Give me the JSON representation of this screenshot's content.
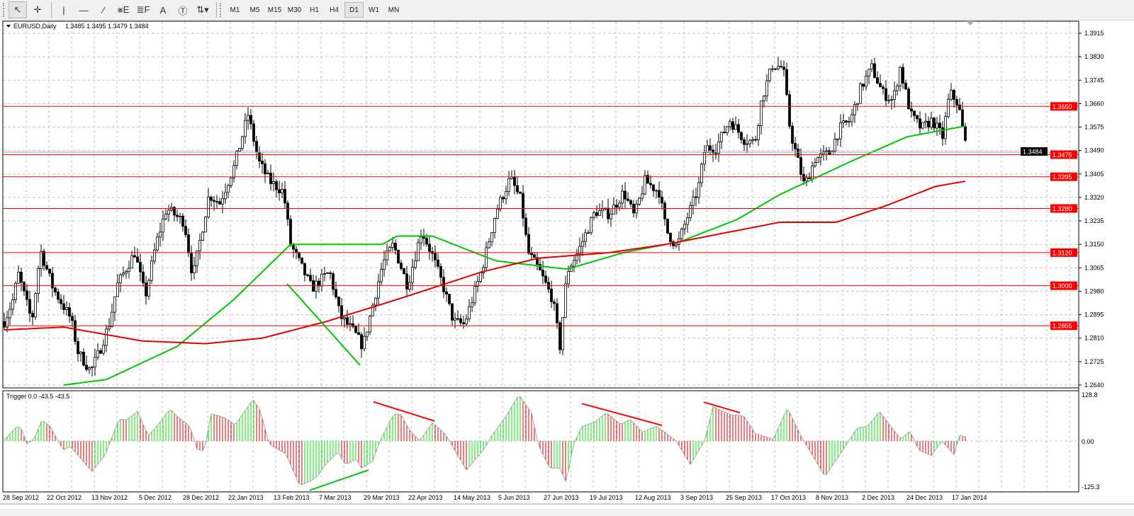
{
  "toolbar": {
    "tools": [
      {
        "name": "cursor-arrow",
        "glyph": "↖",
        "selected": true
      },
      {
        "name": "crosshair",
        "glyph": "✛",
        "selected": false
      },
      {
        "name": "vertical-line",
        "glyph": "|",
        "selected": false
      },
      {
        "name": "horizontal-line",
        "glyph": "—",
        "selected": false
      },
      {
        "name": "trendline",
        "glyph": "∕",
        "selected": false
      },
      {
        "name": "equidistant-channel",
        "glyph": "⨳E",
        "selected": false
      },
      {
        "name": "fibonacci",
        "glyph": "≣F",
        "selected": false
      },
      {
        "name": "text",
        "glyph": "A",
        "selected": false
      },
      {
        "name": "text-label",
        "glyph": "Ⓣ",
        "selected": false
      },
      {
        "name": "arrows-dropdown",
        "glyph": "⇅▾",
        "selected": false
      }
    ],
    "timeframes": [
      "M1",
      "M5",
      "M15",
      "M30",
      "H1",
      "H4",
      "D1",
      "W1",
      "MN"
    ],
    "selected_timeframe": "D1"
  },
  "chart_data": {
    "type": "candlestick",
    "title": "EURUSD,Daily",
    "ohlc_readout": "1.3485 1.3495 1.3479 1.3484",
    "current_price": 1.3484,
    "current_price_label": "1.3484",
    "ylim": [
      1.264,
      1.3915
    ],
    "y_ticks": [
      "1.3915",
      "1.3830",
      "1.3745",
      "1.3660",
      "1.3575",
      "1.3490",
      "1.3405",
      "1.3320",
      "1.3235",
      "1.3150",
      "1.3065",
      "1.2980",
      "1.2895",
      "1.2810",
      "1.2725",
      "1.2640"
    ],
    "x_tick_labels": [
      "28 Sep 2012",
      "22 Oct 2012",
      "13 Nov 2012",
      "5 Dec 2012",
      "28 Dec 2012",
      "22 Jan 2013",
      "13 Feb 2013",
      "7 Mar 2013",
      "29 Mar 2013",
      "22 Apr 2013",
      "14 May 2013",
      "5 Jun 2013",
      "27 Jun 2013",
      "19 Jul 2013",
      "12 Aug 2013",
      "3 Sep 2013",
      "25 Sep 2013",
      "17 Oct 2013",
      "8 Nov 2013",
      "2 Dec 2013",
      "24 Dec 2013",
      "17 Jan 2014"
    ],
    "grid": true,
    "price_path": [
      1.287,
      1.296,
      1.305,
      1.287,
      1.313,
      1.299,
      1.288,
      1.276,
      1.269,
      1.276,
      1.287,
      1.3,
      1.312,
      1.296,
      1.315,
      1.328,
      1.323,
      1.303,
      1.333,
      1.33,
      1.343,
      1.362,
      1.345,
      1.338,
      1.334,
      1.315,
      1.307,
      1.299,
      1.305,
      1.289,
      1.283,
      1.278,
      1.292,
      1.308,
      1.315,
      1.3,
      1.32,
      1.311,
      1.3,
      1.287,
      1.286,
      1.306,
      1.327,
      1.339,
      1.331,
      1.312,
      1.306,
      1.295,
      1.278,
      1.305,
      1.312,
      1.327,
      1.326,
      1.334,
      1.325,
      1.338,
      1.334,
      1.32,
      1.314,
      1.325,
      1.335,
      1.35,
      1.35,
      1.36,
      1.353,
      1.352,
      1.368,
      1.38,
      1.379,
      1.356,
      1.346,
      1.336,
      1.346,
      1.348,
      1.357,
      1.36,
      1.372,
      1.379,
      1.37,
      1.367,
      1.379,
      1.362,
      1.357,
      1.36,
      1.354,
      1.37,
      1.366,
      1.354,
      1.3484
    ],
    "moving_averages": [
      {
        "color": "#00c800",
        "values": [
          1.264,
          1.266,
          1.278,
          1.295,
          1.315,
          1.315,
          1.315,
          1.318,
          1.318,
          1.309,
          1.306,
          1.312,
          1.316,
          1.324,
          1.333,
          1.339,
          1.345,
          1.354,
          1.358
        ]
      },
      {
        "color": "#e00000",
        "values": [
          1.284,
          1.285,
          1.28,
          1.279,
          1.281,
          1.287,
          1.295,
          1.305,
          1.31,
          1.312,
          1.315,
          1.319,
          1.323,
          1.323,
          1.329,
          1.336,
          1.338
        ]
      }
    ],
    "horizontal_levels": [
      {
        "price": 1.365,
        "label": "1.3650"
      },
      {
        "price": 1.3475,
        "label": "1.3475"
      },
      {
        "price": 1.3395,
        "label": "1.3395"
      },
      {
        "price": 1.328,
        "label": "1.3280"
      },
      {
        "price": 1.312,
        "label": "1.3120"
      },
      {
        "price": 1.3,
        "label": "1.3000"
      },
      {
        "price": 1.2855,
        "label": "1.2855"
      }
    ],
    "level_color": "#ff0000",
    "trendlines": [
      {
        "color": "#00c800",
        "from": 1.3007,
        "to": 1.2712
      }
    ],
    "indicator": {
      "type": "histogram",
      "title": "Trigger 0.0 -43.5 -43.5",
      "ylim": [
        -125.3,
        128.8
      ],
      "y_ticks": [
        "128.8",
        "0.00",
        "-125.3"
      ],
      "up_color": "#00e000",
      "down_color": "#e00000",
      "values": [
        0,
        41,
        32,
        -8,
        5,
        58,
        40,
        -25,
        -15,
        -84,
        -40,
        60,
        58,
        82,
        15,
        35,
        88,
        68,
        40,
        -22,
        -28,
        75,
        65,
        44,
        115,
        85,
        -10,
        -35,
        -123,
        -110,
        -95,
        -70,
        -30,
        -65,
        -50,
        -75,
        -55,
        0,
        75,
        72,
        32,
        0,
        50,
        20,
        -30,
        -80,
        -20,
        15,
        68,
        127,
        78,
        -15,
        -75,
        -75,
        -100,
        -115,
        -10,
        40,
        52,
        78,
        45,
        60,
        25,
        40,
        30,
        0,
        -65,
        0,
        95,
        72,
        70,
        20,
        5,
        90,
        0,
        -98,
        -20,
        35,
        40,
        82,
        55,
        5,
        28,
        -25,
        -40,
        0,
        -38,
        15,
        12,
        -45
      ],
      "divergence_lines": [
        {
          "color": "#ff0000",
          "from": 108,
          "to": 55
        },
        {
          "color": "#00c800",
          "from": -136,
          "to": -80
        },
        {
          "color": "#ff0000",
          "from": 103,
          "to": 43
        },
        {
          "color": "#ff0000",
          "from": 107,
          "to": 78
        }
      ]
    }
  }
}
